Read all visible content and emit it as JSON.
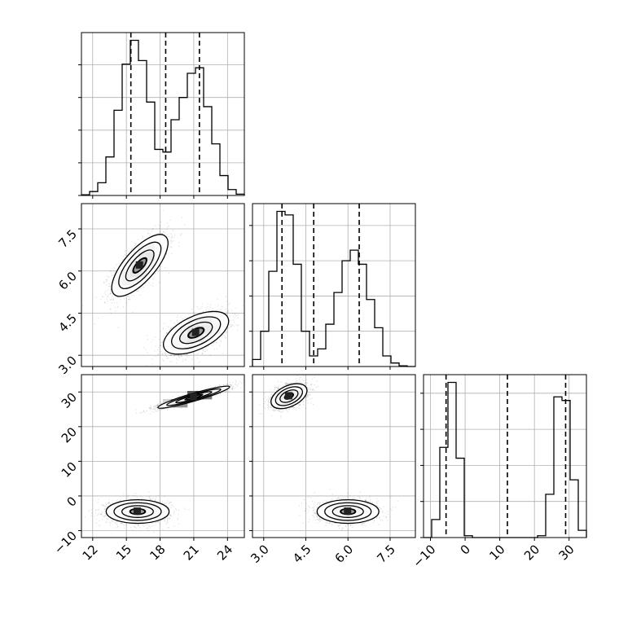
{
  "chart_data": {
    "type": "corner",
    "style": {
      "line_color": "#000000",
      "grid": true,
      "grid_color": "#b0b0b0",
      "background": "#ffffff"
    },
    "histograms": [
      {
        "parameter": 0,
        "range": [
          11,
          25.5
        ],
        "quantiles": [
          15.4,
          18.5,
          21.5
        ],
        "bin_edges": [
          11,
          11.725,
          12.45,
          13.175,
          13.9,
          14.625,
          15.35,
          16.075,
          16.8,
          17.525,
          18.25,
          18.975,
          19.7,
          20.425,
          21.15,
          21.875,
          22.6,
          23.325,
          24.05,
          24.775,
          25.5
        ],
        "counts": [
          0.2,
          1.2,
          3.9,
          11.8,
          26.1,
          40.2,
          47.5,
          41.3,
          28.6,
          14.1,
          13.3,
          23.2,
          30.0,
          37.4,
          39.1,
          27.2,
          15.8,
          6.1,
          1.8,
          0.4
        ],
        "ytick_values": [
          0,
          10,
          20,
          30,
          40,
          50
        ]
      },
      {
        "parameter": 1,
        "range": [
          2.6,
          8.4
        ],
        "quantiles": [
          3.65,
          4.78,
          6.4
        ],
        "bin_edges": [
          2.6,
          2.89,
          3.18,
          3.47,
          3.76,
          4.05,
          4.34,
          4.63,
          4.92,
          5.21,
          5.5,
          5.79,
          6.08,
          6.37,
          6.66,
          6.95,
          7.24,
          7.53,
          7.82,
          8.11,
          8.4
        ],
        "counts": [
          2.0,
          10.0,
          27.0,
          44.0,
          43.0,
          29.0,
          10.0,
          3.0,
          5.0,
          12.0,
          21.0,
          30.0,
          33.0,
          29.0,
          19.0,
          11.0,
          3.0,
          1.0,
          0.2,
          0.0
        ],
        "ytick_values": [
          0,
          10,
          20,
          30,
          40
        ]
      },
      {
        "parameter": 2,
        "range": [
          -12,
          35
        ],
        "quantiles": [
          -5.5,
          12.2,
          29
        ],
        "bin_edges": [
          -12,
          -9.65,
          -7.3,
          -4.95,
          -2.6,
          -0.25,
          2.1,
          4.45,
          6.8,
          9.15,
          11.5,
          13.85,
          16.2,
          18.55,
          20.9,
          23.25,
          25.6,
          27.95,
          30.3,
          32.65,
          35
        ],
        "counts": [
          0.0,
          5.0,
          25.0,
          43.0,
          22.0,
          0.5,
          0.0,
          0.0,
          0.0,
          0.0,
          0.0,
          0.0,
          0.0,
          0.0,
          0.5,
          12.0,
          39.0,
          38.0,
          16.0,
          2.0
        ],
        "ytick_values": [
          0,
          10,
          20,
          30,
          40
        ]
      }
    ],
    "axes": [
      {
        "parameter": 0,
        "range": [
          11,
          25.5
        ],
        "tick_values": [
          12,
          15,
          18,
          21,
          24
        ],
        "tick_labels": [
          "12",
          "15",
          "18",
          "21",
          "24"
        ]
      },
      {
        "parameter": 1,
        "range": [
          2.6,
          8.4
        ],
        "tick_values": [
          3.0,
          4.5,
          6.0,
          7.5
        ],
        "tick_labels": [
          "3.0",
          "4.5",
          "6.0",
          "7.5"
        ]
      },
      {
        "parameter": 2,
        "range": [
          -12,
          35
        ],
        "tick_values": [
          -10,
          0,
          10,
          20,
          30
        ],
        "tick_labels": [
          "−10",
          "0",
          "10",
          "20",
          "30"
        ]
      }
    ],
    "pairs": [
      {
        "x_param": 0,
        "y_param": 1,
        "clusters": [
          {
            "center": [
              16.2,
              6.2
            ],
            "sd": [
              1.25,
              0.55
            ],
            "rho": 0.72,
            "n": 1600,
            "contour_levels": [
              0.5,
              1.0,
              1.5,
              2.0
            ]
          },
          {
            "center": [
              21.2,
              3.8
            ],
            "sd": [
              1.45,
              0.38
            ],
            "rho": 0.55,
            "n": 1600,
            "contour_levels": [
              0.5,
              1.0,
              1.5,
              2.0
            ]
          }
        ]
      },
      {
        "x_param": 0,
        "y_param": 2,
        "clusters": [
          {
            "center": [
              16.0,
              -4.5
            ],
            "sd": [
              1.4,
              1.7
            ],
            "rho": 0.0,
            "n": 1600,
            "contour_levels": [
              0.5,
              1.0,
              1.5,
              2.0
            ]
          },
          {
            "center": [
              21.0,
              28.5
            ],
            "sd": [
              1.6,
              1.6
            ],
            "rho": 0.93,
            "n": 1600,
            "contour_levels": [
              0.5,
              1.0,
              1.5,
              2.0
            ]
          }
        ]
      },
      {
        "x_param": 1,
        "y_param": 2,
        "clusters": [
          {
            "center": [
              3.9,
              28.8
            ],
            "sd": [
              0.32,
              1.8
            ],
            "rho": 0.45,
            "n": 1600,
            "contour_levels": [
              0.5,
              1.0,
              1.5,
              2.0
            ]
          },
          {
            "center": [
              6.0,
              -4.5
            ],
            "sd": [
              0.55,
              1.7
            ],
            "rho": 0.0,
            "n": 1600,
            "contour_levels": [
              0.5,
              1.0,
              1.5,
              2.0
            ]
          }
        ]
      }
    ]
  }
}
